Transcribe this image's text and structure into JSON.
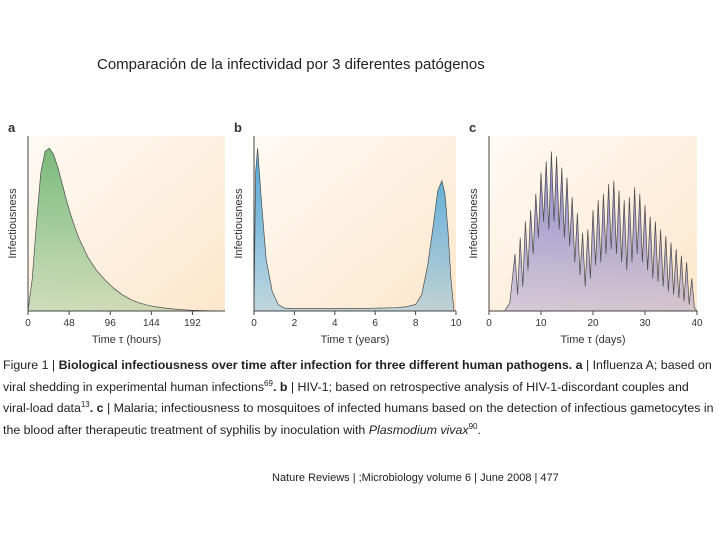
{
  "slide": {
    "title": "Comparación de la infectividad por 3 diferentes  patógenos"
  },
  "figure": {
    "caption": {
      "fig_label": "Figure 1 | ",
      "bold_title": "Biological infectiousness over time after infection for three different human pathogens. a",
      "part_a": " | Influenza A; based on viral shedding in experimental human infections",
      "ref_a": "69",
      "part_b_label": ". b",
      "part_b": " | HIV-1; based on retrospective analysis of HIV-1-discordant couples and viral-load data",
      "ref_b": "13",
      "part_c_label": ". c",
      "part_c": " | Malaria; infectiousness to mosquitoes of infected humans based on the detection of infectious gametocytes in the blood after therapeutic treatment of syphilis by inoculation with ",
      "species": "Plasmodium vivax",
      "ref_c": "90",
      "end": "."
    },
    "footer": "Nature Reviews | ;Microbiology volume 6 | June 2008 | 477"
  },
  "chart_data": [
    {
      "type": "area",
      "panel": "a",
      "subject": "Influenza A",
      "ylabel": "Infectiousness",
      "xlabel": "Time τ (hours)",
      "xlim": [
        0,
        230
      ],
      "x_ticks": [
        0,
        48,
        96,
        144,
        192
      ],
      "y_units": "relative (unlabeled)",
      "ylim": [
        0,
        1
      ],
      "x": [
        0,
        5,
        10,
        15,
        20,
        25,
        30,
        35,
        40,
        45,
        50,
        55,
        60,
        70,
        80,
        90,
        100,
        110,
        120,
        130,
        140,
        150,
        160,
        170,
        180,
        190,
        200,
        210,
        220,
        230
      ],
      "y": [
        0.0,
        0.2,
        0.55,
        0.85,
        0.98,
        1.0,
        0.96,
        0.88,
        0.78,
        0.68,
        0.59,
        0.51,
        0.44,
        0.33,
        0.25,
        0.19,
        0.14,
        0.1,
        0.07,
        0.05,
        0.035,
        0.025,
        0.018,
        0.012,
        0.008,
        0.005,
        0.003,
        0.002,
        0.001,
        0.0
      ],
      "colors": {
        "fill": "#7ab97a",
        "background": "#fde7cc"
      }
    },
    {
      "type": "area",
      "panel": "b",
      "subject": "HIV-1",
      "ylabel": "Infectiousness",
      "xlabel": "Time τ (years)",
      "xlim": [
        0,
        10
      ],
      "x_ticks": [
        0,
        2,
        4,
        6,
        8,
        10
      ],
      "y_units": "relative (unlabeled)",
      "ylim": [
        0,
        1
      ],
      "x": [
        0,
        0.08,
        0.18,
        0.35,
        0.6,
        0.9,
        1.2,
        1.5,
        2,
        3,
        4,
        5,
        6,
        7,
        7.5,
        8,
        8.3,
        8.6,
        8.9,
        9.1,
        9.3,
        9.45,
        9.6,
        9.75,
        9.9
      ],
      "y": [
        0.0,
        0.85,
        1.0,
        0.7,
        0.32,
        0.12,
        0.04,
        0.018,
        0.015,
        0.015,
        0.015,
        0.015,
        0.017,
        0.02,
        0.025,
        0.04,
        0.1,
        0.28,
        0.55,
        0.74,
        0.8,
        0.72,
        0.5,
        0.2,
        0.0
      ],
      "colors": {
        "fill": "#4fa6d8",
        "background": "#fde7cc"
      }
    },
    {
      "type": "area",
      "panel": "c",
      "subject": "Malaria (Plasmodium vivax)",
      "ylabel": "Infectiousness",
      "xlabel": "Time τ (days)",
      "xlim": [
        0,
        40
      ],
      "x_ticks": [
        0,
        10,
        20,
        30,
        40
      ],
      "y_units": "relative (unlabeled)",
      "ylim": [
        0,
        1
      ],
      "x": [
        0,
        3,
        4,
        5,
        5.5,
        6,
        6.5,
        7,
        7.5,
        8,
        8.5,
        9,
        9.5,
        10,
        10.5,
        11,
        11.5,
        12,
        12.5,
        13,
        13.5,
        14,
        14.5,
        15,
        15.5,
        16,
        16.5,
        17,
        17.5,
        18,
        18.5,
        19,
        19.5,
        20,
        20.5,
        21,
        21.5,
        22,
        22.5,
        23,
        23.5,
        24,
        24.5,
        25,
        25.5,
        26,
        26.5,
        27,
        27.5,
        28,
        28.5,
        29,
        29.5,
        30,
        30.5,
        31,
        31.5,
        32,
        32.5,
        33,
        33.5,
        34,
        34.5,
        35,
        35.5,
        36,
        36.5,
        37,
        37.5,
        38,
        38.5,
        39,
        39.5,
        40
      ],
      "y": [
        0.0,
        0.0,
        0.05,
        0.35,
        0.1,
        0.45,
        0.15,
        0.55,
        0.25,
        0.62,
        0.35,
        0.72,
        0.45,
        0.85,
        0.55,
        0.92,
        0.5,
        0.98,
        0.55,
        0.95,
        0.5,
        0.88,
        0.45,
        0.82,
        0.4,
        0.7,
        0.3,
        0.6,
        0.22,
        0.48,
        0.15,
        0.5,
        0.2,
        0.62,
        0.28,
        0.68,
        0.3,
        0.72,
        0.35,
        0.78,
        0.38,
        0.8,
        0.35,
        0.74,
        0.3,
        0.68,
        0.25,
        0.7,
        0.3,
        0.76,
        0.35,
        0.72,
        0.3,
        0.65,
        0.25,
        0.58,
        0.2,
        0.55,
        0.18,
        0.5,
        0.15,
        0.46,
        0.12,
        0.42,
        0.1,
        0.38,
        0.08,
        0.34,
        0.06,
        0.3,
        0.04,
        0.2,
        0.02,
        0.0
      ],
      "colors": {
        "fill": "#8b85c8",
        "background": "#fde7cc"
      }
    }
  ]
}
